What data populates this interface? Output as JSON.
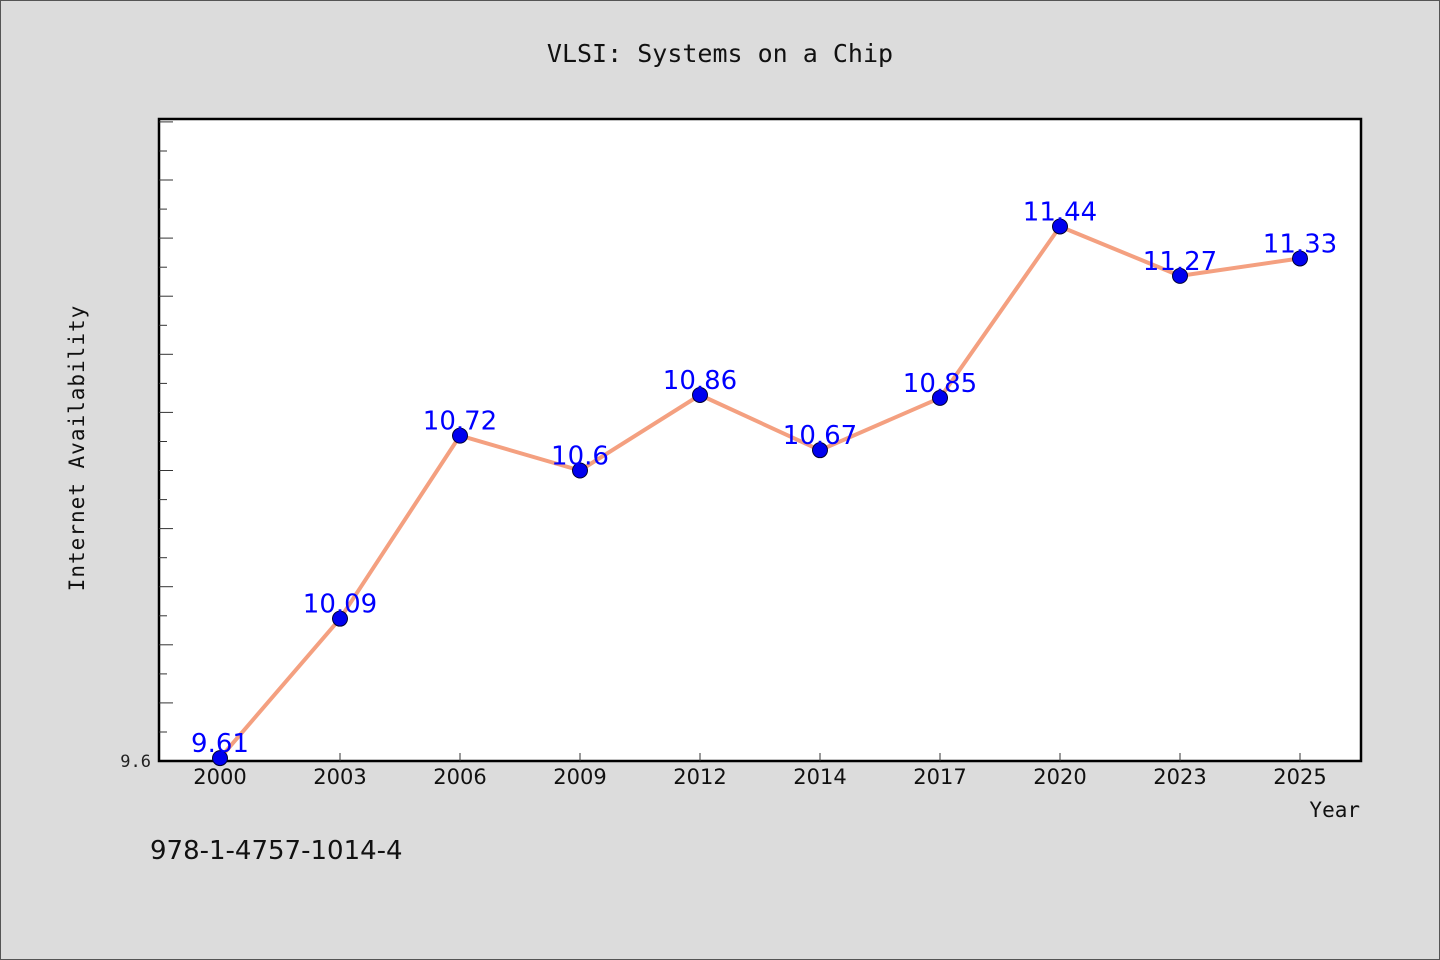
{
  "chart_data": {
    "type": "line",
    "title": "VLSI: Systems on a Chip",
    "xlabel": "Year",
    "ylabel": "Internet Availability",
    "categories": [
      "2000",
      "2003",
      "2006",
      "2009",
      "2012",
      "2014",
      "2017",
      "2020",
      "2023",
      "2025"
    ],
    "values": [
      9.61,
      10.09,
      10.72,
      10.6,
      10.86,
      10.67,
      10.85,
      11.44,
      11.27,
      11.33
    ],
    "value_labels": [
      "9.61",
      "10.09",
      "10.72",
      "10.6",
      "10.86",
      "10.67",
      "10.85",
      "11.44",
      "11.27",
      "11.33"
    ],
    "y_tick_labels": [
      {
        "value": 9.6,
        "label": "9.6"
      }
    ],
    "ylim": [
      9.6,
      11.81
    ],
    "grid": false,
    "line_color": "#f4a080",
    "marker_color": "#0000ee",
    "label_color": "#0000ff"
  },
  "footer_text": "978-1-4757-1014-4"
}
